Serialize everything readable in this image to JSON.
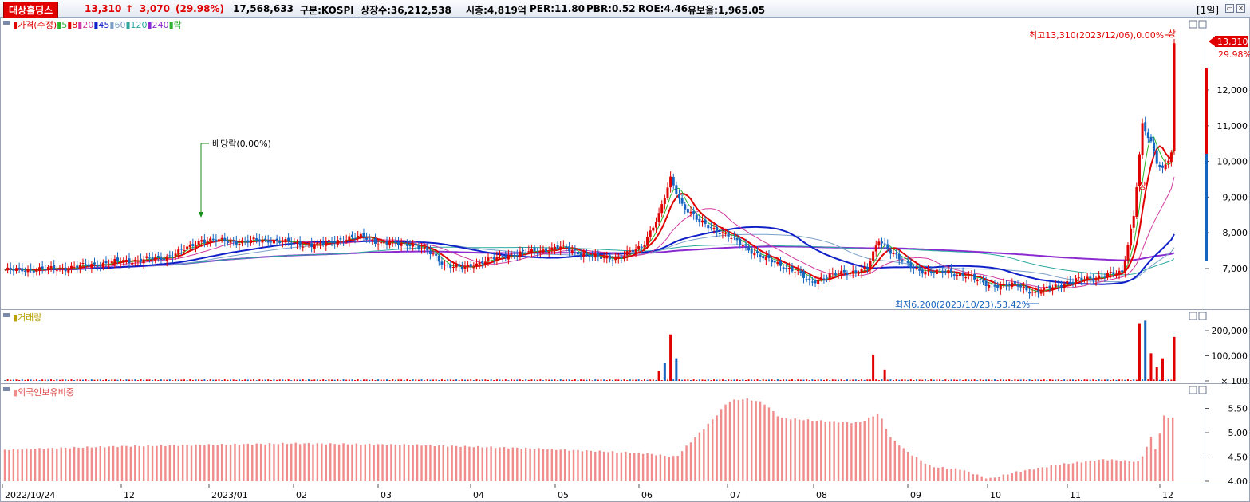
{
  "header": {
    "name": "대상홀딩스",
    "price": "13,310",
    "arrow": "↑",
    "change": "3,070",
    "change_pct": "(29.98%)",
    "volume": "17,568,633",
    "market": "구분:KOSPI",
    "shares": "상장수:36,212,538",
    "mcap": "시총:4,819억",
    "per": "PER:11.80",
    "pbr": "PBR:0.52",
    "roe": "ROE:4.46",
    "reserve": "유보율:1,965.05",
    "period": "[1일]"
  },
  "colors": {
    "up": "#e00000",
    "down": "#1464c0",
    "ma5": "#2bb32b",
    "ma8": "#e00000",
    "ma20": "#d03aa0",
    "ma45": "#1020c8",
    "ma60": "#7aa0c8",
    "ma120": "#2aa8a0",
    "ma240": "#8a2ad0",
    "foreign": "#f08c8c"
  },
  "legend": {
    "price": [
      {
        "mark": "▮",
        "text": "가격(수정)",
        "color": "#e00000"
      },
      {
        "mark": "▮",
        "text": "5",
        "color": "#2bb32b"
      },
      {
        "mark": "▮",
        "text": "8",
        "color": "#e00000"
      },
      {
        "mark": "▮",
        "text": "20",
        "color": "#d03aa0"
      },
      {
        "mark": "▮",
        "text": "45",
        "color": "#1020c8"
      },
      {
        "mark": "▮",
        "text": "60",
        "color": "#7aa0c8"
      },
      {
        "mark": "▮",
        "text": "120",
        "color": "#2aa8a0"
      },
      {
        "mark": "▮",
        "text": "240",
        "color": "#8a2ad0"
      },
      {
        "mark": "▮",
        "text": "락",
        "color": "#2bb32b"
      }
    ],
    "volume": "거래량",
    "foreign": "외국인보유비중"
  },
  "annotations": {
    "dividend": "배당락(0.00%)",
    "high": "최고13,310(2023/12/06),0.00%",
    "low": "최저6,200(2023/10/23),53.42%",
    "limit_up": "상"
  },
  "price_tag": {
    "value": "13,310",
    "pct": "29.98%"
  },
  "chart_data": {
    "type": "candlestick",
    "x_labels": [
      "2022/10/24",
      "12",
      "2023/01",
      "02",
      "03",
      "04",
      "05",
      "06",
      "07",
      "08",
      "09",
      "10",
      "11",
      "12"
    ],
    "price_axis": {
      "ticks": [
        7000,
        8000,
        9000,
        10000,
        11000,
        12000
      ],
      "tick_labels": [
        "7,000",
        "8,000",
        "9,000",
        "10,000",
        "11,000",
        "12,000"
      ]
    },
    "volume_axis": {
      "ticks": [
        100,
        100000,
        200000
      ],
      "tick_labels": [
        "× 100",
        "100,000",
        "200,000"
      ]
    },
    "foreign_axis": {
      "ticks": [
        4.0,
        4.5,
        5.0,
        5.5
      ],
      "tick_labels": [
        "4.00",
        "4.50",
        "5.00",
        "5.50"
      ]
    },
    "close_path": [
      [
        0,
        6950
      ],
      [
        20,
        7000
      ],
      [
        40,
        7200
      ],
      [
        55,
        7300
      ],
      [
        64,
        7600
      ],
      [
        68,
        7800
      ],
      [
        80,
        7750
      ],
      [
        92,
        7800
      ],
      [
        100,
        7700
      ],
      [
        108,
        7650
      ],
      [
        115,
        7800
      ],
      [
        124,
        7900
      ],
      [
        130,
        7700
      ],
      [
        140,
        7700
      ],
      [
        148,
        7400
      ],
      [
        152,
        7100
      ],
      [
        158,
        7000
      ],
      [
        165,
        7200
      ],
      [
        175,
        7400
      ],
      [
        185,
        7500
      ],
      [
        192,
        7600
      ],
      [
        198,
        7450
      ],
      [
        205,
        7300
      ],
      [
        212,
        7300
      ],
      [
        220,
        7600
      ],
      [
        226,
        8500
      ],
      [
        230,
        9500
      ],
      [
        234,
        8800
      ],
      [
        240,
        8300
      ],
      [
        248,
        8000
      ],
      [
        256,
        7600
      ],
      [
        262,
        7300
      ],
      [
        268,
        7100
      ],
      [
        274,
        6900
      ],
      [
        278,
        6600
      ],
      [
        284,
        6800
      ],
      [
        292,
        6900
      ],
      [
        298,
        7000
      ],
      [
        302,
        7800
      ],
      [
        306,
        7500
      ],
      [
        310,
        7200
      ],
      [
        314,
        7000
      ],
      [
        320,
        6900
      ],
      [
        326,
        6900
      ],
      [
        332,
        6800
      ],
      [
        338,
        6600
      ],
      [
        344,
        6500
      ],
      [
        350,
        6550
      ],
      [
        356,
        6300
      ],
      [
        362,
        6500
      ],
      [
        372,
        6700
      ],
      [
        380,
        6800
      ],
      [
        386,
        6900
      ],
      [
        390,
        8500
      ],
      [
        393,
        11000
      ],
      [
        396,
        10500
      ],
      [
        398,
        10000
      ],
      [
        400,
        9800
      ],
      [
        403,
        10240
      ],
      [
        404,
        13310
      ]
    ],
    "volume_spikes": [
      {
        "day": 226,
        "value": 40000,
        "dir": "up"
      },
      {
        "day": 228,
        "value": 70000,
        "dir": "down"
      },
      {
        "day": 230,
        "value": 185000,
        "dir": "up"
      },
      {
        "day": 232,
        "value": 90000,
        "dir": "down"
      },
      {
        "day": 300,
        "value": 105000,
        "dir": "up"
      },
      {
        "day": 304,
        "value": 45000,
        "dir": "up"
      },
      {
        "day": 392,
        "value": 230000,
        "dir": "up"
      },
      {
        "day": 394,
        "value": 240000,
        "dir": "down"
      },
      {
        "day": 396,
        "value": 110000,
        "dir": "up"
      },
      {
        "day": 398,
        "value": 55000,
        "dir": "up"
      },
      {
        "day": 400,
        "value": 90000,
        "dir": "up"
      },
      {
        "day": 404,
        "value": 175000,
        "dir": "up"
      }
    ],
    "foreign_ratio_path": [
      [
        0,
        4.65
      ],
      [
        40,
        4.72
      ],
      [
        100,
        4.78
      ],
      [
        140,
        4.75
      ],
      [
        180,
        4.68
      ],
      [
        220,
        4.58
      ],
      [
        232,
        4.5
      ],
      [
        236,
        4.75
      ],
      [
        245,
        5.3
      ],
      [
        250,
        5.65
      ],
      [
        256,
        5.7
      ],
      [
        262,
        5.62
      ],
      [
        268,
        5.3
      ],
      [
        280,
        5.25
      ],
      [
        295,
        5.2
      ],
      [
        302,
        5.4
      ],
      [
        306,
        4.9
      ],
      [
        312,
        4.6
      ],
      [
        320,
        4.3
      ],
      [
        330,
        4.25
      ],
      [
        340,
        4.05
      ],
      [
        350,
        4.2
      ],
      [
        365,
        4.35
      ],
      [
        380,
        4.45
      ],
      [
        392,
        4.4
      ],
      [
        396,
        4.9
      ],
      [
        398,
        4.6
      ],
      [
        400,
        5.35
      ],
      [
        404,
        5.3
      ]
    ]
  }
}
